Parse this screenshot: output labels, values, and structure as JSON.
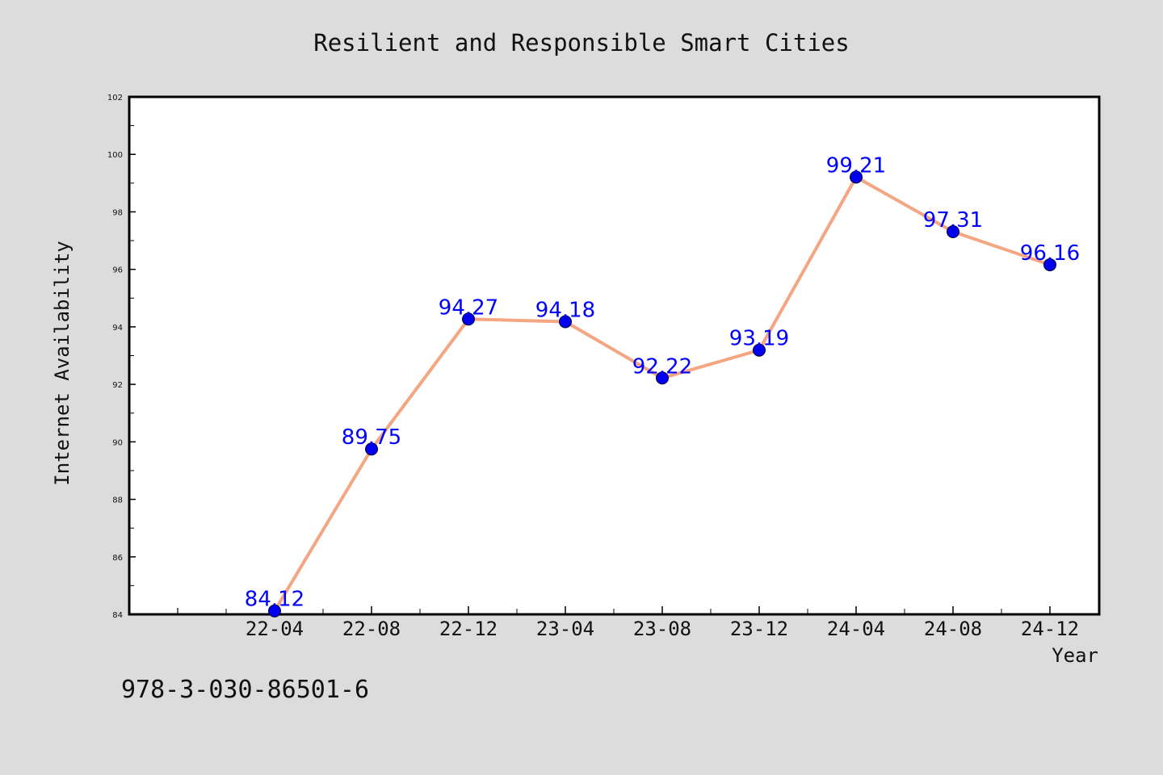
{
  "chart_data": {
    "type": "line",
    "title": "Resilient and Responsible Smart Cities",
    "xlabel": "Year",
    "ylabel": "Internet Availability",
    "categories": [
      "22-04",
      "22-08",
      "22-12",
      "23-04",
      "23-08",
      "23-12",
      "24-04",
      "24-08",
      "24-12"
    ],
    "series": [
      {
        "values": [
          84.12,
          89.75,
          94.27,
          94.18,
          92.22,
          93.19,
          99.21,
          97.31,
          96.16
        ],
        "labels": [
          "84.12",
          "89.75",
          "94.27",
          "94.18",
          "92.22",
          "93.19",
          "99.21",
          "97.31",
          "96.16"
        ]
      }
    ],
    "ylim": [
      84,
      102
    ],
    "yticks": [
      "84",
      "86",
      "88",
      "90",
      "92",
      "94",
      "96",
      "98",
      "100",
      "102"
    ],
    "grid": false,
    "legend": "none",
    "colors": {
      "line": "#f4a582",
      "marker": "#0000ee",
      "data_label": "#0000ff",
      "background": "#dcdcdc",
      "plot_background": "#ffffff"
    }
  },
  "footer": {
    "text": "978-3-030-86501-6"
  }
}
